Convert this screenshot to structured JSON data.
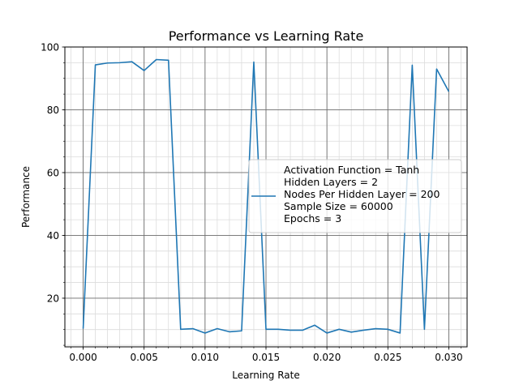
{
  "chart_data": {
    "type": "line",
    "title": "Performance vs Learning Rate",
    "xlabel": "Learning Rate",
    "ylabel": "Performance",
    "xlim": [
      -0.0015,
      0.0315
    ],
    "ylim": [
      4.5,
      100
    ],
    "x_ticks": [
      0.0,
      0.005,
      0.01,
      0.015,
      0.02,
      0.025,
      0.03
    ],
    "x_tick_labels": [
      "0.000",
      "0.005",
      "0.010",
      "0.015",
      "0.020",
      "0.025",
      "0.030"
    ],
    "y_ticks": [
      20,
      40,
      60,
      80,
      100
    ],
    "y_tick_labels": [
      "20",
      "40",
      "60",
      "80",
      "100"
    ],
    "x_minor_step": 0.001,
    "y_minor_step": 5,
    "grid": true,
    "minor_grid": true,
    "legend_position": "center-right",
    "series": [
      {
        "name": "Activation Function = Tanh\nHidden Layers = 2\nNodes Per Hidden Layer = 200\nSample Size = 60000\nEpochs = 3",
        "color": "#1f77b4",
        "x": [
          0.0,
          0.001,
          0.002,
          0.003,
          0.004,
          0.005,
          0.006,
          0.007,
          0.008,
          0.009,
          0.01,
          0.011,
          0.012,
          0.013,
          0.014,
          0.015,
          0.016,
          0.017,
          0.018,
          0.019,
          0.02,
          0.021,
          0.022,
          0.023,
          0.024,
          0.025,
          0.026,
          0.027,
          0.028,
          0.029,
          0.03
        ],
        "values": [
          10.3,
          94.3,
          94.9,
          95.0,
          95.3,
          92.5,
          96.0,
          95.8,
          10.1,
          10.3,
          8.9,
          10.3,
          9.3,
          9.6,
          95.2,
          10.1,
          10.1,
          9.8,
          9.8,
          11.4,
          8.9,
          10.1,
          9.2,
          9.8,
          10.3,
          10.1,
          8.9,
          94.2,
          10.1,
          93.0,
          85.8
        ]
      }
    ]
  }
}
